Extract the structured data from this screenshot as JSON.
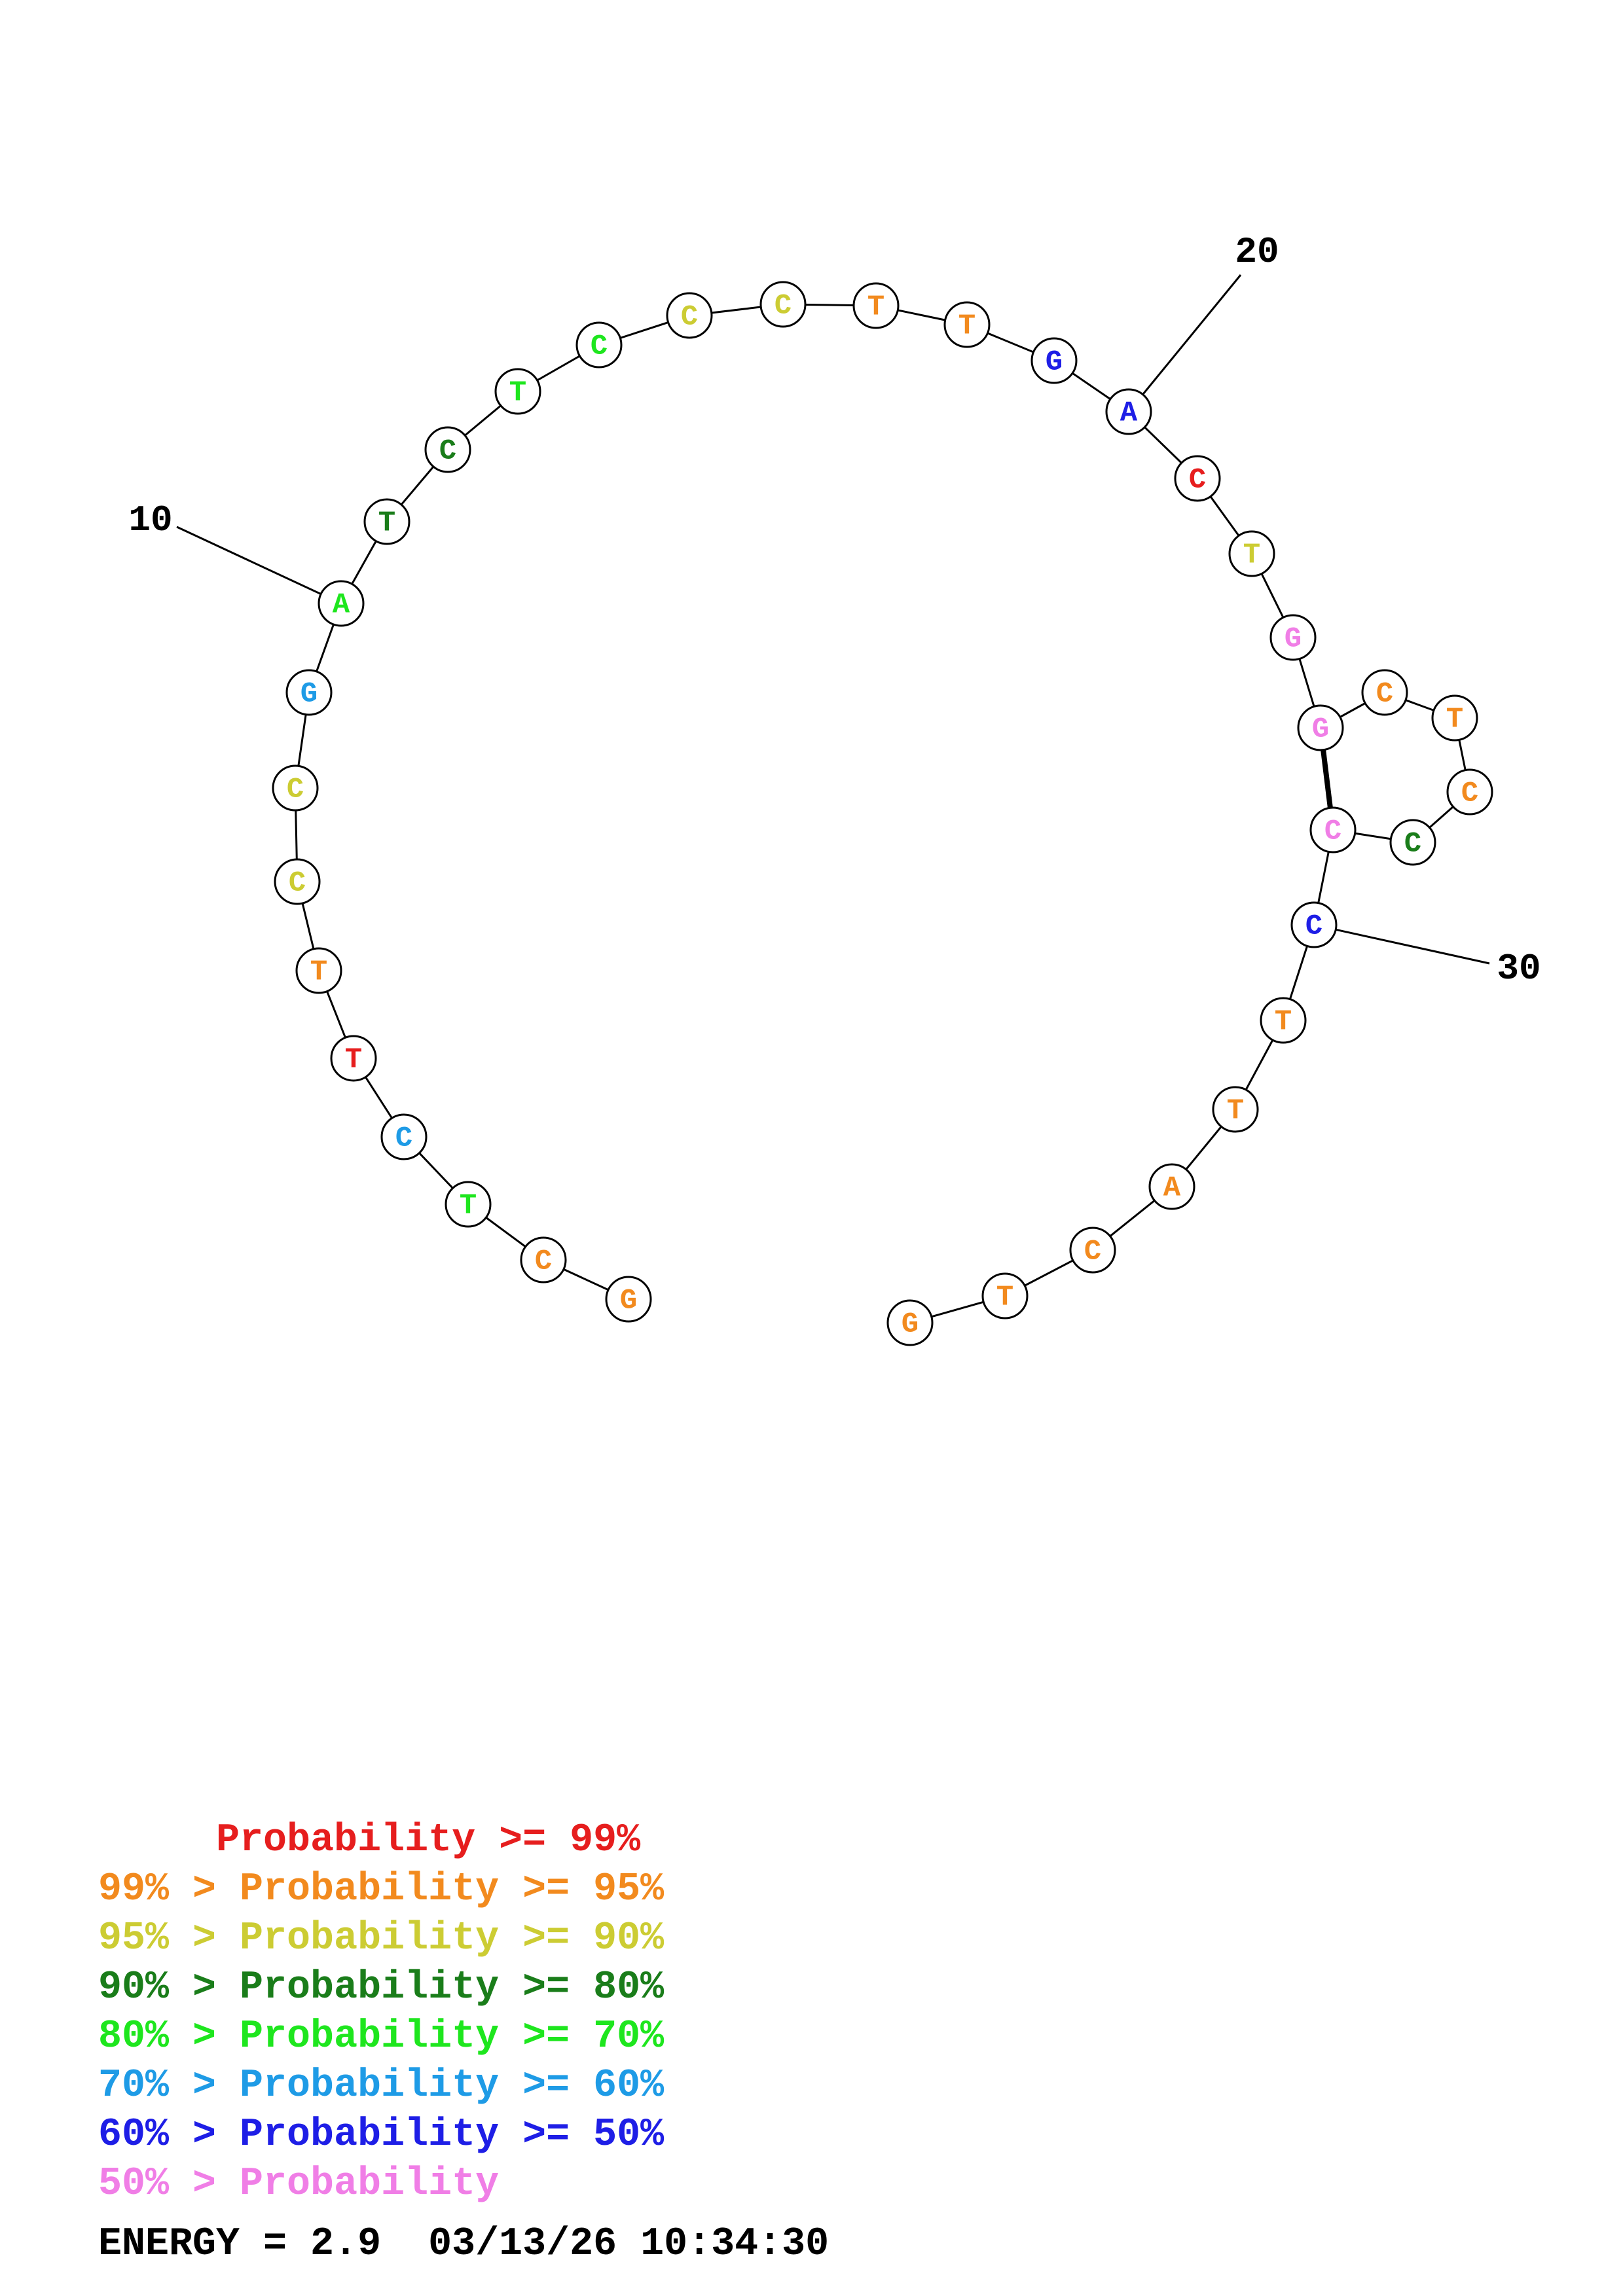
{
  "sequence": [
    {
      "base": "G",
      "color": "#f28a1e"
    },
    {
      "base": "C",
      "color": "#f28a1e"
    },
    {
      "base": "T",
      "color": "#1ee61e"
    },
    {
      "base": "C",
      "color": "#1e9be6"
    },
    {
      "base": "T",
      "color": "#e61e1e"
    },
    {
      "base": "T",
      "color": "#f28a1e"
    },
    {
      "base": "C",
      "color": "#cccc33"
    },
    {
      "base": "C",
      "color": "#cccc33"
    },
    {
      "base": "G",
      "color": "#1e9be6"
    },
    {
      "base": "A",
      "color": "#1ee61e"
    },
    {
      "base": "T",
      "color": "#1a7d1a"
    },
    {
      "base": "C",
      "color": "#1a7d1a"
    },
    {
      "base": "T",
      "color": "#1ee61e"
    },
    {
      "base": "C",
      "color": "#1ee61e"
    },
    {
      "base": "C",
      "color": "#cccc33"
    },
    {
      "base": "C",
      "color": "#cccc33"
    },
    {
      "base": "T",
      "color": "#f28a1e"
    },
    {
      "base": "T",
      "color": "#f28a1e"
    },
    {
      "base": "G",
      "color": "#1e1ee6"
    },
    {
      "base": "A",
      "color": "#1e1ee6"
    },
    {
      "base": "C",
      "color": "#e61e1e"
    },
    {
      "base": "T",
      "color": "#cccc33"
    },
    {
      "base": "G",
      "color": "#f07ee6"
    },
    {
      "base": "G",
      "color": "#f07ee6"
    },
    {
      "base": "C",
      "color": "#f28a1e"
    },
    {
      "base": "T",
      "color": "#f28a1e"
    },
    {
      "base": "C",
      "color": "#f28a1e"
    },
    {
      "base": "C",
      "color": "#1a7d1a"
    },
    {
      "base": "C",
      "color": "#f07ee6"
    },
    {
      "base": "C",
      "color": "#1e1ee6"
    },
    {
      "base": "T",
      "color": "#f28a1e"
    },
    {
      "base": "T",
      "color": "#f28a1e"
    },
    {
      "base": "A",
      "color": "#f28a1e"
    },
    {
      "base": "C",
      "color": "#f28a1e"
    },
    {
      "base": "T",
      "color": "#f28a1e"
    },
    {
      "base": "G",
      "color": "#f28a1e"
    }
  ],
  "pairs": [
    [
      24,
      29
    ]
  ],
  "index_labels": [
    {
      "position": 10,
      "text": "10"
    },
    {
      "position": 20,
      "text": "20"
    },
    {
      "position": 30,
      "text": "30"
    }
  ],
  "legend": [
    {
      "text": "     Probability >= 99%",
      "color": "#e61e1e"
    },
    {
      "text": "99% > Probability >= 95%",
      "color": "#f28a1e"
    },
    {
      "text": "95% > Probability >= 90%",
      "color": "#cccc33"
    },
    {
      "text": "90% > Probability >= 80%",
      "color": "#1a7d1a"
    },
    {
      "text": "80% > Probability >= 70%",
      "color": "#1ee61e"
    },
    {
      "text": "70% > Probability >= 60%",
      "color": "#1e9be6"
    },
    {
      "text": "60% > Probability >= 50%",
      "color": "#1e1ee6"
    },
    {
      "text": "50% > Probability",
      "color": "#f07ee6"
    }
  ],
  "footer": {
    "energy": "ENERGY = 2.9  03/13/26 10:34:30"
  }
}
